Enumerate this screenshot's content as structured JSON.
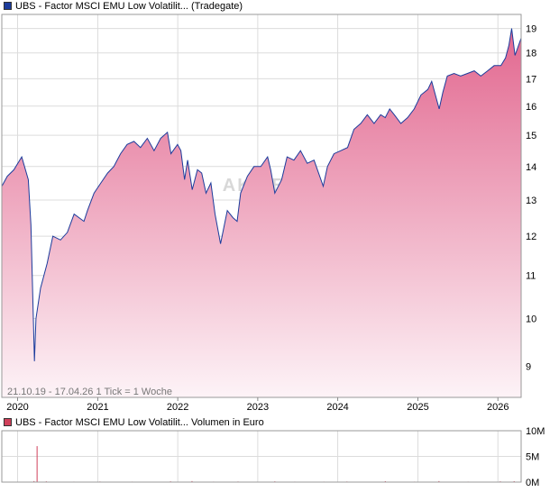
{
  "legend_main": {
    "label": "UBS - Factor MSCI EMU Low Volatilit... (Tradegate)",
    "color": "#1c3c9c"
  },
  "legend_volume": {
    "label": "UBS - Factor MSCI EMU Low Volatilit... Volumen in Euro",
    "color": "#d0405a"
  },
  "info_text": "21.10.19 - 17.04.26   1 Tick = 1 Woche",
  "watermark": "AKTIEN",
  "colors": {
    "line": "#1c3c9c",
    "fill_top": "#e2678f",
    "fill_bottom": "#fdf3f7",
    "grid": "#dcdcdc",
    "volume_bar": "#d0405a"
  },
  "chart_data": [
    {
      "type": "area",
      "scale": "log",
      "ylim": [
        8.4,
        19.6
      ],
      "yticks": [
        9,
        10,
        11,
        12,
        13,
        14,
        15,
        16,
        17,
        18,
        19
      ],
      "xticks": [
        "2020",
        "2021",
        "2022",
        "2023",
        "2024",
        "2025",
        "2026"
      ],
      "grid": true,
      "x": [
        "2019-10-21",
        "2019-11-15",
        "2019-12-15",
        "2020-01-20",
        "2020-02-19",
        "2020-03-02",
        "2020-03-18",
        "2020-03-25",
        "2020-04-15",
        "2020-05-15",
        "2020-06-10",
        "2020-07-15",
        "2020-08-15",
        "2020-09-15",
        "2020-10-30",
        "2020-11-15",
        "2020-12-15",
        "2021-01-15",
        "2021-02-15",
        "2021-03-15",
        "2021-04-15",
        "2021-05-15",
        "2021-06-15",
        "2021-07-15",
        "2021-08-15",
        "2021-09-15",
        "2021-10-15",
        "2021-11-15",
        "2021-12-01",
        "2021-12-31",
        "2022-01-15",
        "2022-02-01",
        "2022-02-15",
        "2022-03-08",
        "2022-04-01",
        "2022-04-20",
        "2022-05-10",
        "2022-06-01",
        "2022-06-20",
        "2022-07-15",
        "2022-08-15",
        "2022-09-10",
        "2022-09-29",
        "2022-10-15",
        "2022-11-15",
        "2022-12-15",
        "2023-01-15",
        "2023-02-15",
        "2023-03-01",
        "2023-03-20",
        "2023-04-20",
        "2023-05-15",
        "2023-06-15",
        "2023-07-15",
        "2023-08-15",
        "2023-09-15",
        "2023-10-27",
        "2023-11-15",
        "2023-12-15",
        "2024-01-15",
        "2024-02-15",
        "2024-03-15",
        "2024-04-15",
        "2024-05-15",
        "2024-06-15",
        "2024-07-15",
        "2024-08-05",
        "2024-08-25",
        "2024-09-15",
        "2024-10-15",
        "2024-11-15",
        "2024-12-15",
        "2025-01-15",
        "2025-02-15",
        "2025-03-05",
        "2025-04-08",
        "2025-04-25",
        "2025-05-15",
        "2025-06-15",
        "2025-07-15",
        "2025-08-15",
        "2025-09-15",
        "2025-10-15",
        "2025-11-15",
        "2025-12-15",
        "2026-01-15",
        "2026-02-05",
        "2026-02-20",
        "2026-03-05",
        "2026-03-20",
        "2026-04-17"
      ],
      "y": [
        13.4,
        13.7,
        13.9,
        14.3,
        13.6,
        12.3,
        9.1,
        10.0,
        10.7,
        11.3,
        12.0,
        11.9,
        12.1,
        12.6,
        12.4,
        12.7,
        13.2,
        13.5,
        13.8,
        14.0,
        14.4,
        14.7,
        14.8,
        14.6,
        14.9,
        14.5,
        14.9,
        15.1,
        14.4,
        14.7,
        14.5,
        13.6,
        14.2,
        13.3,
        13.9,
        13.8,
        13.2,
        13.5,
        12.6,
        11.8,
        12.7,
        12.5,
        12.4,
        13.2,
        13.7,
        14.0,
        14.0,
        14.3,
        13.9,
        13.2,
        13.6,
        14.3,
        14.2,
        14.5,
        14.1,
        14.2,
        13.4,
        14.0,
        14.4,
        14.5,
        14.6,
        15.2,
        15.4,
        15.7,
        15.4,
        15.7,
        15.6,
        15.9,
        15.7,
        15.4,
        15.6,
        15.9,
        16.4,
        16.6,
        16.9,
        15.9,
        16.5,
        17.1,
        17.2,
        17.1,
        17.2,
        17.3,
        17.1,
        17.3,
        17.5,
        17.5,
        17.8,
        18.3,
        19.0,
        17.9,
        18.6
      ]
    },
    {
      "type": "bar",
      "title": "Volumen in Euro",
      "ylim": [
        0,
        10
      ],
      "yticks": [
        "0M",
        "5M",
        "10M"
      ],
      "x": [
        "2020-03-16",
        "2020-03-30",
        "2020-05-11",
        "2020-09-14",
        "2021-01-11",
        "2021-06-07",
        "2021-11-29",
        "2022-03-07",
        "2022-06-13",
        "2022-10-03",
        "2023-03-20",
        "2023-06-19",
        "2023-10-30",
        "2024-02-12",
        "2024-08-05",
        "2024-12-16",
        "2025-04-07",
        "2025-08-18",
        "2026-01-12",
        "2026-03-16"
      ],
      "values": [
        0.2,
        7.0,
        0.15,
        0.1,
        0.12,
        0.1,
        0.15,
        0.2,
        0.1,
        0.12,
        0.15,
        0.1,
        0.1,
        0.12,
        0.18,
        0.1,
        0.2,
        0.1,
        0.15,
        0.18
      ]
    }
  ]
}
